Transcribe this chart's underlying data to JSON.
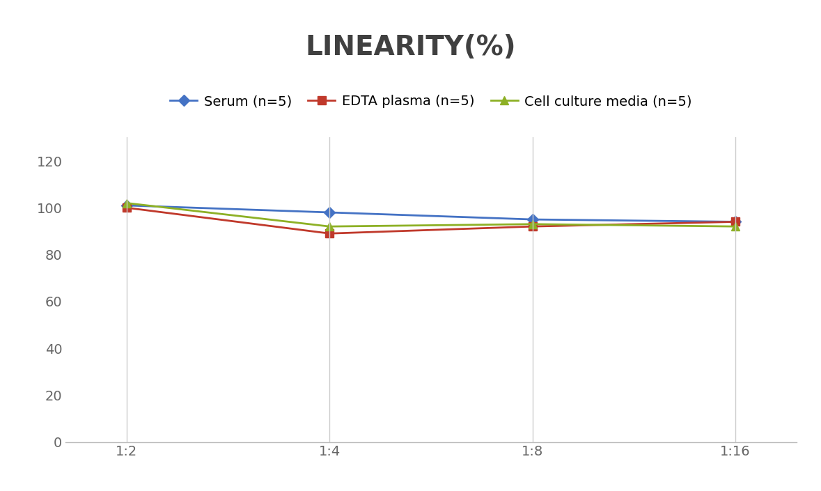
{
  "title": "LINEARITY(%)",
  "title_fontsize": 28,
  "title_fontweight": "bold",
  "title_color": "#404040",
  "x_labels": [
    "1:2",
    "1:4",
    "1:8",
    "1:16"
  ],
  "series": [
    {
      "label": "Serum (n=5)",
      "values": [
        101,
        98,
        95,
        94
      ],
      "color": "#4472C4",
      "marker": "D",
      "markersize": 8,
      "linewidth": 2
    },
    {
      "label": "EDTA plasma (n=5)",
      "values": [
        100,
        89,
        92,
        94
      ],
      "color": "#C0392B",
      "marker": "s",
      "markersize": 8,
      "linewidth": 2
    },
    {
      "label": "Cell culture media (n=5)",
      "values": [
        102,
        92,
        93,
        92
      ],
      "color": "#8DB025",
      "marker": "^",
      "markersize": 9,
      "linewidth": 2
    }
  ],
  "ylim": [
    0,
    130
  ],
  "yticks": [
    0,
    20,
    40,
    60,
    80,
    100,
    120
  ],
  "tick_fontsize": 14,
  "tick_color": "#666666",
  "background_color": "#FFFFFF",
  "grid_color": "#CCCCCC",
  "legend_fontsize": 14,
  "legend_ncol": 3
}
